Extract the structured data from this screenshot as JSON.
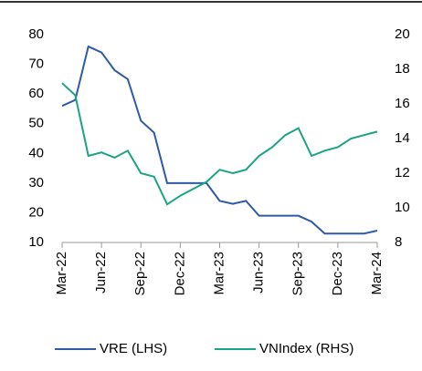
{
  "chart_data": {
    "type": "line",
    "categories": [
      "Mar-22",
      null,
      null,
      "Jun-22",
      null,
      null,
      "Sep-22",
      null,
      null,
      "Dec-22",
      null,
      null,
      "Mar-23",
      null,
      null,
      "Jun-23",
      null,
      null,
      "Sep-23",
      null,
      null,
      "Dec-23",
      null,
      null,
      "Mar-24"
    ],
    "series": [
      {
        "name": "VRE (LHS)",
        "color": "#2f5aa8",
        "axis": "y",
        "values": [
          56,
          58,
          76,
          74,
          68,
          65,
          51,
          47,
          30,
          30,
          30,
          30,
          24,
          23,
          24,
          19,
          19,
          19,
          19,
          17,
          13,
          13,
          13,
          13,
          14
        ]
      },
      {
        "name": "VNIndex (RHS)",
        "color": "#1aa385",
        "axis": "y2",
        "values": [
          17.2,
          16.5,
          13.0,
          13.2,
          12.9,
          13.3,
          12.0,
          11.8,
          10.2,
          10.7,
          11.1,
          11.5,
          12.2,
          12.0,
          12.2,
          13.0,
          13.5,
          14.2,
          14.6,
          13.0,
          13.3,
          13.5,
          14.0,
          14.2,
          14.4
        ]
      }
    ],
    "ylim": [
      10,
      80
    ],
    "yticks": [
      10,
      20,
      30,
      40,
      50,
      60,
      70,
      80
    ],
    "y2lim": [
      8,
      20
    ],
    "y2ticks": [
      8,
      10,
      12,
      14,
      16,
      18,
      20
    ],
    "legend": "bottom"
  }
}
